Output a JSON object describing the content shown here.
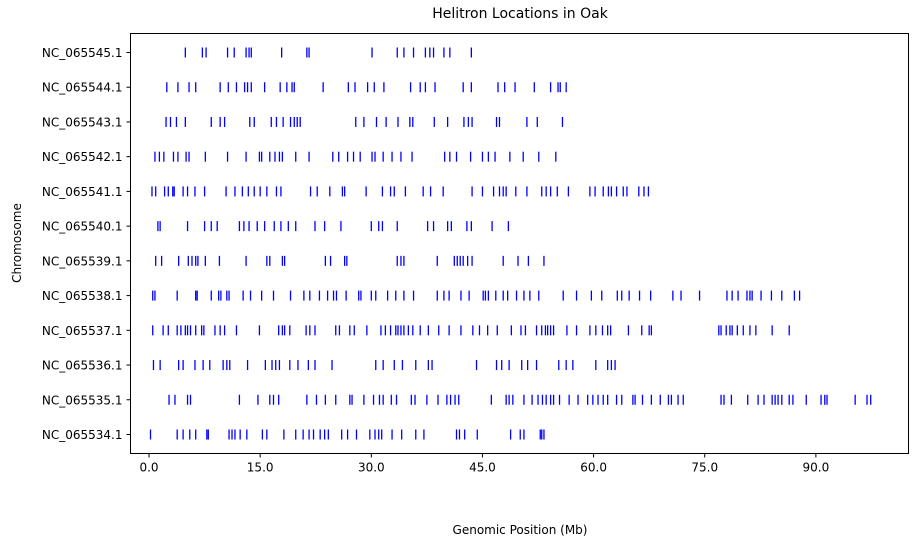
{
  "chart_data": {
    "type": "scatter",
    "marker": "vertical-tick",
    "marker_color": "#0000ff",
    "title": "Helitron Locations in Oak",
    "xlabel": "Genomic Position (Mb)",
    "ylabel": "Chromosome",
    "xlim": [
      -2.5,
      102.5
    ],
    "xticks": [
      0,
      15,
      30,
      45,
      60,
      75,
      90
    ],
    "xtick_labels": [
      "0.0",
      "15.0",
      "30.0",
      "45.0",
      "60.0",
      "75.0",
      "90.0"
    ],
    "grid": false,
    "legend": "none",
    "series": [
      {
        "category": "NC_065545.1",
        "x": [
          4.9,
          7.2,
          7.7,
          10.6,
          11.5,
          13.1,
          13.5,
          13.8,
          17.9,
          21.3,
          21.6,
          30.1,
          33.5,
          34.4,
          35.7,
          37.3,
          37.9,
          38.4,
          39.8,
          40.6,
          43.5
        ]
      },
      {
        "category": "NC_065544.1",
        "x": [
          2.4,
          3.9,
          5.4,
          6.3,
          9.6,
          10.7,
          11.8,
          12.9,
          13.3,
          13.8,
          15.6,
          17.7,
          18.6,
          19.3,
          19.6,
          23.5,
          26.9,
          27.8,
          29.5,
          30.4,
          31.7,
          35.3,
          36.6,
          37.3,
          38.6,
          42.4,
          43.5,
          47.1,
          48.0,
          49.4,
          52.0,
          54.2,
          55.2,
          55.5,
          56.3
        ]
      },
      {
        "category": "NC_065543.1",
        "x": [
          2.3,
          2.9,
          3.7,
          4.9,
          8.4,
          9.6,
          10.2,
          13.6,
          14.2,
          16.5,
          17.2,
          18.1,
          19.1,
          19.6,
          20.0,
          20.4,
          27.9,
          29.0,
          30.7,
          32.0,
          33.6,
          35.2,
          35.6,
          38.5,
          40.3,
          42.5,
          43.1,
          43.6,
          46.9,
          47.3,
          51.0,
          52.4,
          55.8
        ]
      },
      {
        "category": "NC_065542.1",
        "x": [
          0.8,
          1.4,
          2.0,
          3.3,
          3.9,
          5.0,
          5.4,
          7.6,
          10.6,
          13.1,
          14.9,
          15.2,
          16.3,
          17.0,
          17.6,
          18.0,
          19.8,
          21.6,
          24.8,
          25.6,
          26.8,
          27.6,
          28.5,
          30.1,
          30.5,
          31.6,
          32.8,
          34.0,
          35.5,
          39.9,
          40.6,
          41.5,
          43.4,
          45.0,
          45.8,
          46.7,
          48.7,
          50.5,
          52.6,
          54.9
        ]
      },
      {
        "category": "NC_065541.1",
        "x": [
          0.4,
          0.9,
          2.1,
          2.6,
          3.2,
          3.4,
          4.6,
          5.2,
          6.2,
          7.5,
          10.4,
          11.6,
          12.6,
          13.4,
          14.2,
          15.0,
          15.9,
          17.2,
          17.8,
          21.8,
          22.7,
          24.4,
          26.1,
          26.4,
          29.3,
          31.5,
          32.6,
          33.1,
          34.6,
          37.0,
          38.0,
          39.7,
          43.6,
          45.0,
          46.5,
          47.3,
          47.8,
          48.2,
          49.5,
          51.0,
          53.0,
          53.6,
          54.2,
          55.1,
          56.6,
          59.5,
          60.2,
          61.3,
          62.0,
          62.4,
          63.1,
          64.0,
          64.5,
          66.1,
          66.8,
          67.4
        ]
      },
      {
        "category": "NC_065540.1",
        "x": [
          1.2,
          1.5,
          5.2,
          7.5,
          8.4,
          9.2,
          12.2,
          12.8,
          13.5,
          14.6,
          15.6,
          16.9,
          17.8,
          18.8,
          19.8,
          22.4,
          23.7,
          25.9,
          30.0,
          31.0,
          31.5,
          33.5,
          37.6,
          38.4,
          40.3,
          40.8,
          42.9,
          43.5,
          46.3,
          48.5
        ]
      },
      {
        "category": "NC_065539.1",
        "x": [
          0.9,
          1.7,
          4.0,
          5.3,
          5.8,
          6.3,
          6.6,
          7.6,
          9.5,
          13.1,
          15.9,
          16.3,
          18.0,
          18.3,
          23.8,
          24.5,
          26.4,
          26.7,
          33.5,
          34.0,
          34.4,
          38.9,
          41.2,
          41.6,
          42.0,
          42.4,
          43.0,
          43.6,
          47.8,
          49.8,
          51.2,
          53.3
        ]
      },
      {
        "category": "NC_065538.1",
        "x": [
          0.5,
          0.8,
          3.8,
          6.3,
          6.5,
          8.4,
          9.4,
          9.7,
          10.5,
          10.8,
          12.7,
          13.7,
          15.2,
          16.8,
          19.1,
          20.9,
          21.7,
          23.0,
          24.1,
          24.9,
          25.3,
          26.6,
          28.3,
          28.6,
          30.0,
          30.6,
          32.2,
          33.3,
          34.4,
          35.7,
          38.9,
          39.8,
          40.5,
          42.1,
          43.2,
          45.1,
          45.4,
          45.8,
          46.8,
          47.8,
          48.4,
          49.6,
          50.6,
          51.4,
          52.6,
          55.9,
          57.7,
          59.7,
          61.1,
          63.2,
          63.8,
          64.8,
          66.2,
          67.7,
          70.7,
          71.8,
          74.3,
          78.0,
          78.7,
          79.5,
          80.7,
          81.1,
          81.4,
          82.6,
          84.0,
          85.4,
          87.1,
          87.8
        ]
      },
      {
        "category": "NC_065537.1",
        "x": [
          0.5,
          1.9,
          2.6,
          3.8,
          4.3,
          4.9,
          5.2,
          5.6,
          6.3,
          7.1,
          7.4,
          8.9,
          9.6,
          10.2,
          11.8,
          14.9,
          17.5,
          18.0,
          18.3,
          19.0,
          21.2,
          21.7,
          22.4,
          25.2,
          25.7,
          27.1,
          27.7,
          29.4,
          31.3,
          31.9,
          32.6,
          33.3,
          33.6,
          34.0,
          34.4,
          35.0,
          35.6,
          36.6,
          37.7,
          39.1,
          40.5,
          42.1,
          43.7,
          44.6,
          45.7,
          47.0,
          48.9,
          50.2,
          50.8,
          52.3,
          53.0,
          53.5,
          53.8,
          54.2,
          54.6,
          56.4,
          57.7,
          59.5,
          60.3,
          61.2,
          61.9,
          62.3,
          64.7,
          66.5,
          67.5,
          67.8,
          76.9,
          77.2,
          77.9,
          78.4,
          78.7,
          79.4,
          80.2,
          81.1,
          81.9,
          84.1,
          86.4
        ]
      },
      {
        "category": "NC_065536.1",
        "x": [
          0.6,
          1.5,
          4.0,
          4.6,
          6.2,
          7.3,
          8.2,
          10.0,
          10.5,
          10.9,
          13.3,
          15.7,
          16.6,
          17.1,
          17.6,
          19.0,
          20.1,
          21.5,
          22.4,
          24.7,
          30.6,
          31.6,
          33.1,
          34.2,
          36.0,
          37.7,
          38.2,
          44.2,
          46.9,
          47.6,
          48.6,
          50.3,
          51.1,
          52.3,
          55.3,
          56.3,
          57.2,
          60.3,
          61.9,
          62.4,
          62.9
        ]
      },
      {
        "category": "NC_065535.1",
        "x": [
          2.7,
          3.5,
          5.2,
          5.6,
          12.2,
          14.7,
          16.3,
          16.8,
          17.5,
          21.3,
          22.6,
          23.8,
          25.2,
          27.1,
          27.4,
          29.0,
          30.3,
          31.1,
          31.6,
          32.7,
          33.4,
          35.4,
          35.9,
          37.5,
          39.0,
          40.2,
          40.7,
          41.3,
          41.8,
          46.2,
          48.2,
          48.6,
          49.1,
          50.6,
          51.7,
          52.5,
          53.1,
          53.6,
          54.2,
          54.6,
          55.4,
          56.7,
          57.9,
          59.2,
          59.9,
          60.6,
          61.3,
          61.9,
          63.1,
          63.8,
          65.3,
          65.6,
          66.6,
          67.8,
          69.0,
          70.1,
          70.5,
          71.4,
          72.1,
          77.2,
          77.6,
          78.6,
          80.8,
          82.2,
          83.0,
          84.1,
          84.5,
          84.9,
          85.4,
          86.4,
          86.9,
          88.7,
          90.7,
          91.2,
          91.5,
          95.3,
          96.9,
          97.4
        ]
      },
      {
        "category": "NC_065534.1",
        "x": [
          0.2,
          3.8,
          4.6,
          5.5,
          6.3,
          7.8,
          8.0,
          10.8,
          11.2,
          11.6,
          12.3,
          13.2,
          15.3,
          15.9,
          18.2,
          19.8,
          20.8,
          21.6,
          22.2,
          23.1,
          23.7,
          24.2,
          26.0,
          26.8,
          28.0,
          29.8,
          30.5,
          31.0,
          31.4,
          32.8,
          34.1,
          36.0,
          37.1,
          41.5,
          41.9,
          42.6,
          44.3,
          48.8,
          50.1,
          50.6,
          52.8,
          53.0,
          53.3
        ]
      }
    ]
  }
}
